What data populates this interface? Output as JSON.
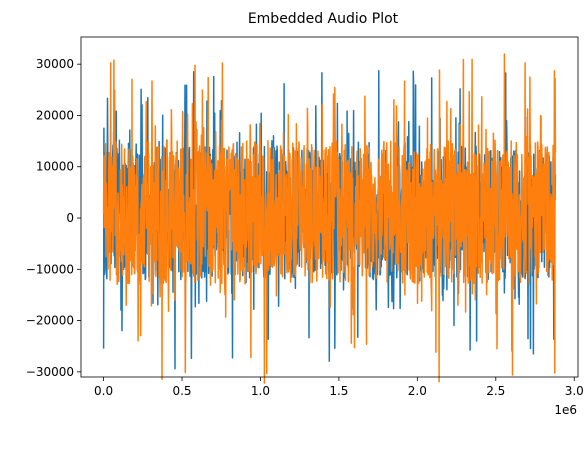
{
  "chart_data": {
    "type": "line",
    "title": "Embedded Audio Plot",
    "xlabel": "",
    "ylabel": "",
    "x_offset_label": "1e6",
    "xlim": [
      -0.144,
      3.024
    ],
    "ylim": [
      -31000,
      35300
    ],
    "x_ticks": [
      {
        "value": 0.0,
        "label": "0.0"
      },
      {
        "value": 0.5,
        "label": "0.5"
      },
      {
        "value": 1.0,
        "label": "1.0"
      },
      {
        "value": 1.5,
        "label": "1.5"
      },
      {
        "value": 2.0,
        "label": "2.0"
      },
      {
        "value": 2.5,
        "label": "2.5"
      },
      {
        "value": 3.0,
        "label": "3.0"
      }
    ],
    "y_ticks": [
      {
        "value": -30000,
        "label": "−30000"
      },
      {
        "value": -20000,
        "label": "−20000"
      },
      {
        "value": -10000,
        "label": "−10000"
      },
      {
        "value": 0,
        "label": "0"
      },
      {
        "value": 10000,
        "label": "10000"
      },
      {
        "value": 20000,
        "label": "20000"
      },
      {
        "value": 30000,
        "label": "30000"
      }
    ],
    "grid": false,
    "legend": "none",
    "x_range_data": [
      0.0,
      2.88
    ],
    "series": [
      {
        "color": "#1f77b4",
        "peak_abs": 29500,
        "typical_max": 14000,
        "typical_min": -12000
      },
      {
        "color": "#ff7f0e",
        "peak_abs": 32300,
        "typical_max": 15000,
        "typical_min": -13000
      }
    ]
  }
}
